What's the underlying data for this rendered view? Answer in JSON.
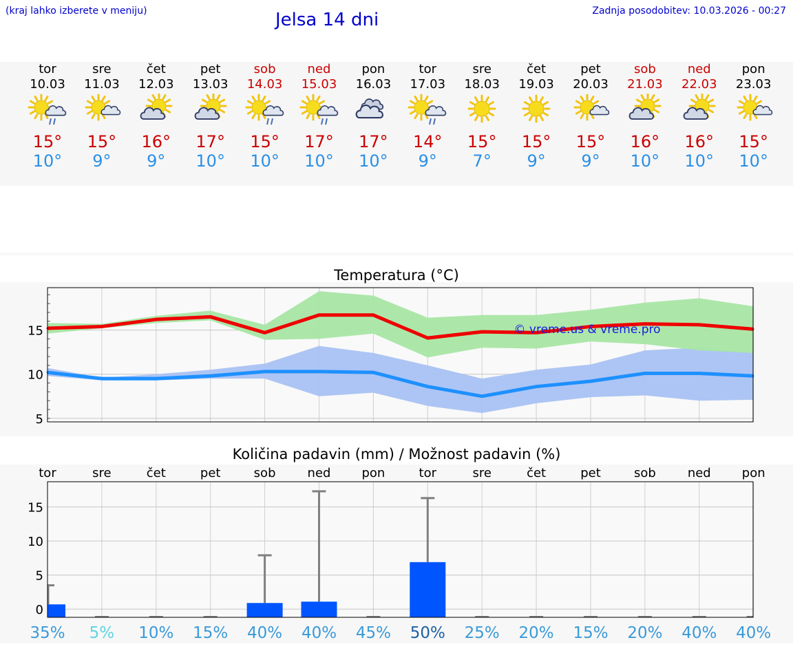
{
  "header": {
    "menu_hint": "(kraj lahko izberete v meniju)",
    "title": "Jelsa 14 dni",
    "last_update": "Zadnja posodobitev: 10.03.2026 - 00:27"
  },
  "colors": {
    "weekend": "#cc0000",
    "tmax": "#cc0000",
    "tmin": "#2a8fe6",
    "max_line": "#ee0000",
    "max_band": "#a8e6a4",
    "min_line": "#1e90ff",
    "min_band": "#a9c2f3",
    "rain_bar": "#0055ff",
    "rain_err": "#808080"
  },
  "days": [
    {
      "name": "tor",
      "date": "10.03",
      "icon": "sun-cloud-rain-icon",
      "tmax": "15°",
      "tmin": "10°",
      "weekend": false
    },
    {
      "name": "sre",
      "date": "11.03",
      "icon": "sun-small-cloud-icon",
      "tmax": "15°",
      "tmin": "9°",
      "weekend": false
    },
    {
      "name": "čet",
      "date": "12.03",
      "icon": "cloud-sun-icon",
      "tmax": "16°",
      "tmin": "9°",
      "weekend": false
    },
    {
      "name": "pet",
      "date": "13.03",
      "icon": "cloud-sun-icon",
      "tmax": "17°",
      "tmin": "10°",
      "weekend": false
    },
    {
      "name": "sob",
      "date": "14.03",
      "icon": "sun-cloud-rain-icon",
      "tmax": "15°",
      "tmin": "10°",
      "weekend": true
    },
    {
      "name": "ned",
      "date": "15.03",
      "icon": "sun-cloud-rain-icon",
      "tmax": "17°",
      "tmin": "10°",
      "weekend": true
    },
    {
      "name": "pon",
      "date": "16.03",
      "icon": "cloudy-icon",
      "tmax": "17°",
      "tmin": "10°",
      "weekend": false
    },
    {
      "name": "tor",
      "date": "17.03",
      "icon": "sun-cloud-rain-icon",
      "tmax": "14°",
      "tmin": "9°",
      "weekend": false
    },
    {
      "name": "sre",
      "date": "18.03",
      "icon": "sun-icon",
      "tmax": "15°",
      "tmin": "7°",
      "weekend": false
    },
    {
      "name": "čet",
      "date": "19.03",
      "icon": "sun-icon",
      "tmax": "15°",
      "tmin": "9°",
      "weekend": false
    },
    {
      "name": "pet",
      "date": "20.03",
      "icon": "sun-small-cloud-icon",
      "tmax": "15°",
      "tmin": "9°",
      "weekend": false
    },
    {
      "name": "sob",
      "date": "21.03",
      "icon": "cloud-sun-icon",
      "tmax": "16°",
      "tmin": "10°",
      "weekend": true
    },
    {
      "name": "ned",
      "date": "22.03",
      "icon": "cloud-sun-icon",
      "tmax": "16°",
      "tmin": "10°",
      "weekend": true
    },
    {
      "name": "pon",
      "date": "23.03",
      "icon": "sun-small-cloud-icon",
      "tmax": "15°",
      "tmin": "10°",
      "weekend": false
    }
  ],
  "chart_data": [
    {
      "type": "line",
      "title": "Temperatura (°C)",
      "watermark": "© vreme.us & vreme.pro",
      "x": [
        0,
        1,
        2,
        3,
        4,
        5,
        6,
        7,
        8,
        9,
        10,
        11,
        12,
        13
      ],
      "yticks": [
        5,
        10,
        15
      ],
      "ylim": [
        4.6,
        19.8
      ],
      "series": [
        {
          "name": "max",
          "values": [
            15.2,
            15.4,
            16.2,
            16.5,
            14.7,
            16.7,
            16.7,
            14.1,
            14.8,
            14.7,
            15.4,
            15.7,
            15.6,
            15.1
          ],
          "band_low": [
            14.6,
            15.2,
            15.8,
            16.1,
            13.9,
            14.0,
            14.6,
            11.9,
            13.0,
            12.9,
            13.7,
            13.4,
            12.7,
            12.4
          ],
          "band_high": [
            15.8,
            15.7,
            16.6,
            17.2,
            15.6,
            19.4,
            18.9,
            16.4,
            16.7,
            16.7,
            17.3,
            18.1,
            18.6,
            17.7
          ]
        },
        {
          "name": "min",
          "values": [
            10.2,
            9.5,
            9.5,
            9.8,
            10.3,
            10.3,
            10.2,
            8.6,
            7.5,
            8.6,
            9.2,
            10.1,
            10.1,
            9.8
          ],
          "band_low": [
            9.8,
            9.3,
            9.3,
            9.5,
            9.5,
            7.5,
            7.9,
            6.4,
            5.6,
            6.7,
            7.4,
            7.6,
            7.0,
            7.1
          ],
          "band_high": [
            10.7,
            9.6,
            10.0,
            10.5,
            11.2,
            13.2,
            12.4,
            11.0,
            9.5,
            10.5,
            11.1,
            12.7,
            13.0,
            12.4
          ]
        }
      ]
    },
    {
      "type": "bar",
      "title": "Količina padavin (mm) / Možnost padavin (%)",
      "categories": [
        "tor",
        "sre",
        "čet",
        "pet",
        "sob",
        "ned",
        "pon",
        "tor",
        "sre",
        "čet",
        "pet",
        "sob",
        "ned",
        "pon"
      ],
      "yticks": [
        0,
        5,
        10,
        15
      ],
      "ylim": [
        -1.2,
        18.7
      ],
      "values": [
        0.7,
        0,
        0,
        0,
        0.9,
        1.1,
        0,
        6.9,
        0,
        0,
        0,
        0,
        0,
        0
      ],
      "error_high": [
        3.5,
        0,
        0,
        0,
        7.9,
        17.3,
        0,
        16.3,
        0,
        0,
        0,
        0,
        0,
        0
      ],
      "probability": [
        "35%",
        "5%",
        "10%",
        "15%",
        "40%",
        "40%",
        "45%",
        "50%",
        "25%",
        "20%",
        "15%",
        "20%",
        "40%",
        "40%"
      ],
      "probability_colors": [
        "#3a9ad9",
        "#5fd4e0",
        "#3a9ad9",
        "#3a9ad9",
        "#3a9ad9",
        "#3a9ad9",
        "#3a9ad9",
        "#1d5fa8",
        "#3a9ad9",
        "#3a9ad9",
        "#3a9ad9",
        "#3a9ad9",
        "#3a9ad9",
        "#3a9ad9"
      ]
    }
  ]
}
